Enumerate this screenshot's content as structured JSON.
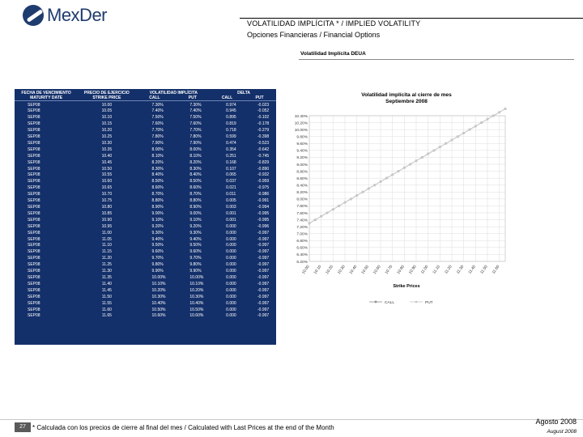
{
  "logo": {
    "text": "MexDer"
  },
  "header": {
    "title": "VOLATILIDAD IMPLÍCITA * / IMPLIED VOLATILITY",
    "subtitle": "Opciones Financieras / Financial Options"
  },
  "panel": {
    "title": "Volatilidad Implícita DEUA"
  },
  "table": {
    "headers": {
      "fecha": "FECHA DE VENCIMIENTO",
      "fecha_en": "MATURITY DATE",
      "strike": "PRECIO DE EJERCICIO",
      "strike_en": "STRIKE PRICE",
      "vol": "VOLATILIDAD IMPLÍCITA",
      "delta": "DELTA",
      "call": "CALL",
      "put": "PUT"
    },
    "rows": [
      [
        "SEP08",
        "10.00",
        "7.30%",
        "7.30%",
        "0.974",
        "-0.023"
      ],
      [
        "SEP08",
        "10.05",
        "7.40%",
        "7.40%",
        "0.945",
        "-0.052"
      ],
      [
        "SEP08",
        "10.10",
        "7.50%",
        "7.50%",
        "0.895",
        "-0.102"
      ],
      [
        "SEP08",
        "10.15",
        "7.60%",
        "7.60%",
        "0.819",
        "-0.178"
      ],
      [
        "SEP08",
        "10.20",
        "7.70%",
        "7.70%",
        "0.718",
        "-0.279"
      ],
      [
        "SEP08",
        "10.25",
        "7.80%",
        "7.80%",
        "0.599",
        "-0.398"
      ],
      [
        "SEP08",
        "10.30",
        "7.90%",
        "7.90%",
        "0.474",
        "-0.523"
      ],
      [
        "SEP08",
        "10.35",
        "8.00%",
        "8.00%",
        "0.354",
        "-0.642"
      ],
      [
        "SEP08",
        "10.40",
        "8.10%",
        "8.10%",
        "0.251",
        "-0.745"
      ],
      [
        "SEP08",
        "10.45",
        "8.20%",
        "8.20%",
        "0.168",
        "-0.829"
      ],
      [
        "SEP08",
        "10.50",
        "8.30%",
        "8.30%",
        "0.107",
        "-0.890"
      ],
      [
        "SEP08",
        "10.55",
        "8.40%",
        "8.40%",
        "0.065",
        "-0.932"
      ],
      [
        "SEP08",
        "10.60",
        "8.50%",
        "8.50%",
        "0.037",
        "-0.959"
      ],
      [
        "SEP08",
        "10.65",
        "8.60%",
        "8.60%",
        "0.021",
        "-0.975"
      ],
      [
        "SEP08",
        "10.70",
        "8.70%",
        "8.70%",
        "0.011",
        "-0.986"
      ],
      [
        "SEP08",
        "10.75",
        "8.80%",
        "8.80%",
        "0.005",
        "-0.991"
      ],
      [
        "SEP08",
        "10.80",
        "8.90%",
        "8.90%",
        "0.003",
        "-0.994"
      ],
      [
        "SEP08",
        "10.85",
        "9.00%",
        "9.00%",
        "0.001",
        "-0.995"
      ],
      [
        "SEP08",
        "10.90",
        "9.10%",
        "9.10%",
        "0.001",
        "-0.995"
      ],
      [
        "SEP08",
        "10.95",
        "9.20%",
        "9.20%",
        "0.000",
        "-0.996"
      ],
      [
        "SEP08",
        "11.00",
        "9.30%",
        "9.30%",
        "0.000",
        "-0.997"
      ],
      [
        "SEP08",
        "11.05",
        "9.40%",
        "9.40%",
        "0.000",
        "-0.997"
      ],
      [
        "SEP08",
        "11.10",
        "9.50%",
        "9.50%",
        "0.000",
        "-0.997"
      ],
      [
        "SEP08",
        "11.15",
        "9.60%",
        "9.60%",
        "0.000",
        "-0.997"
      ],
      [
        "SEP08",
        "11.20",
        "9.70%",
        "9.70%",
        "0.000",
        "-0.997"
      ],
      [
        "SEP08",
        "11.25",
        "9.80%",
        "9.80%",
        "0.000",
        "-0.997"
      ],
      [
        "SEP08",
        "11.30",
        "9.90%",
        "9.90%",
        "0.000",
        "-0.997"
      ],
      [
        "SEP08",
        "11.35",
        "10.00%",
        "10.00%",
        "0.000",
        "-0.997"
      ],
      [
        "SEP08",
        "11.40",
        "10.10%",
        "10.10%",
        "0.000",
        "-0.997"
      ],
      [
        "SEP08",
        "11.45",
        "10.20%",
        "10.20%",
        "0.000",
        "-0.997"
      ],
      [
        "SEP08",
        "11.50",
        "10.30%",
        "10.30%",
        "0.000",
        "-0.997"
      ],
      [
        "SEP08",
        "11.55",
        "10.40%",
        "10.40%",
        "0.000",
        "-0.997"
      ],
      [
        "SEP08",
        "11.60",
        "10.50%",
        "10.50%",
        "0.000",
        "-0.997"
      ],
      [
        "SEP08",
        "11.65",
        "10.60%",
        "10.60%",
        "0.000",
        "-0.997"
      ]
    ]
  },
  "chart_data": {
    "type": "line",
    "title": "Volatilidad implícita al cierre de mes Septiembre 2008",
    "title_lines": [
      "Volatilidad implícita al cierre de mes",
      "Septiembre 2008"
    ],
    "xlabel": "Strike Prices",
    "ylabel": "",
    "x_ticks": [
      "10.00",
      "10.10",
      "10.20",
      "10.30",
      "10.40",
      "10.50",
      "10.60",
      "10.70",
      "10.80",
      "10.90",
      "11.00",
      "11.10",
      "11.20",
      "11.30",
      "11.40",
      "11.50",
      "11.60"
    ],
    "y_ticks": [
      "6.20%",
      "6.40%",
      "6.60%",
      "6.80%",
      "7.00%",
      "7.20%",
      "7.40%",
      "7.60%",
      "7.80%",
      "8.00%",
      "8.20%",
      "8.40%",
      "8.60%",
      "8.80%",
      "9.00%",
      "9.20%",
      "9.40%",
      "9.60%",
      "9.80%",
      "10.00%",
      "10.20%",
      "10.40%"
    ],
    "ylim": [
      6.2,
      10.4
    ],
    "x": [
      10.0,
      10.05,
      10.1,
      10.15,
      10.2,
      10.25,
      10.3,
      10.35,
      10.4,
      10.45,
      10.5,
      10.55,
      10.6,
      10.65,
      10.7,
      10.75,
      10.8,
      10.85,
      10.9,
      10.95,
      11.0,
      11.05,
      11.1,
      11.15,
      11.2,
      11.25,
      11.3,
      11.35,
      11.4,
      11.45,
      11.5,
      11.55,
      11.6,
      11.65
    ],
    "series": [
      {
        "name": "CALL",
        "values": [
          7.3,
          7.4,
          7.5,
          7.6,
          7.7,
          7.8,
          7.9,
          8.0,
          8.1,
          8.2,
          8.3,
          8.4,
          8.5,
          8.6,
          8.7,
          8.8,
          8.9,
          9.0,
          9.1,
          9.2,
          9.3,
          9.4,
          9.5,
          9.6,
          9.7,
          9.8,
          9.9,
          10.0,
          10.1,
          10.2,
          10.3,
          10.4,
          10.5,
          10.6
        ]
      },
      {
        "name": "PUT",
        "values": [
          7.3,
          7.4,
          7.5,
          7.6,
          7.7,
          7.8,
          7.9,
          8.0,
          8.1,
          8.2,
          8.3,
          8.4,
          8.5,
          8.6,
          8.7,
          8.8,
          8.9,
          9.0,
          9.1,
          9.2,
          9.3,
          9.4,
          9.5,
          9.6,
          9.7,
          9.8,
          9.9,
          10.0,
          10.1,
          10.2,
          10.3,
          10.4,
          10.5,
          10.6
        ]
      }
    ],
    "grid": true,
    "legend_position": "bottom",
    "colors": {
      "call": "#8c8c8c",
      "put": "#c8c8c8",
      "grid": "#dcdcdc"
    }
  },
  "footer": {
    "page": "27",
    "note": "* Calculada con los precios de cierre al final del mes / Calculated with Last Prices at the end of the Month",
    "date_es": "Agosto 2008",
    "date_en": "August 2008"
  }
}
